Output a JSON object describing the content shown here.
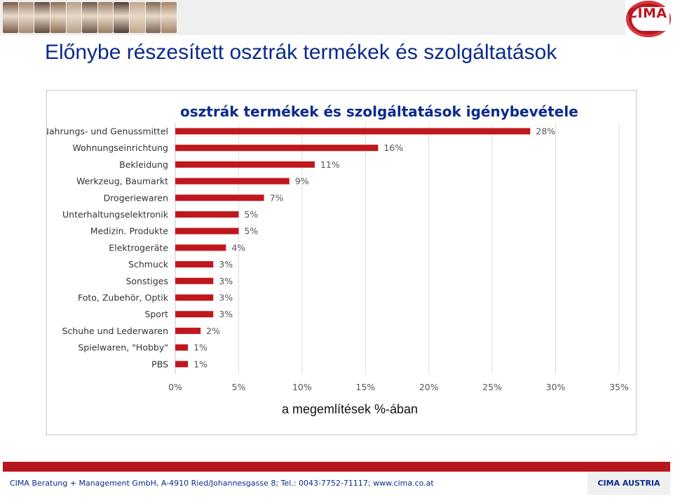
{
  "header": {
    "logo_text": "CIMA",
    "photo_colors": [
      "#7a5a48",
      "#a48a72",
      "#5f4b3e",
      "#8c6d55",
      "#b59f88",
      "#6b5647",
      "#9a7f66",
      "#4e3e34",
      "#c0a58b",
      "#7d6756",
      "#a3846a"
    ]
  },
  "page": {
    "title": "Előnybe részesített osztrák termékek és szolgáltatások"
  },
  "chart_data": {
    "type": "bar",
    "orientation": "horizontal",
    "title": "osztrák termékek és szolgáltatások igénybevétele",
    "xlabel": "a megemlítések %-ában",
    "ylabel": "",
    "xlim": [
      0,
      35
    ],
    "x_ticks": [
      "0%",
      "5%",
      "10%",
      "15%",
      "20%",
      "25%",
      "30%",
      "35%"
    ],
    "x_tick_values": [
      0,
      5,
      10,
      15,
      20,
      25,
      30,
      35
    ],
    "grid": true,
    "bar_color": "#c0171d",
    "categories": [
      "Nahrungs- und Genussmittel",
      "Wohnungseinrichtung",
      "Bekleidung",
      "Werkzeug, Baumarkt",
      "Drogeriewaren",
      "Unterhaltungselektronik",
      "Medizin. Produkte",
      "Elektrogeräte",
      "Schmuck",
      "Sonstiges",
      "Foto, Zubehör, Optik",
      "Sport",
      "Schuhe und Lederwaren",
      "Spielwaren, \"Hobby\"",
      "PBS"
    ],
    "values": [
      28,
      16,
      11,
      9,
      7,
      5,
      5,
      4,
      3,
      3,
      3,
      3,
      2,
      1,
      1
    ],
    "value_labels": [
      "28%",
      "16%",
      "11%",
      "9%",
      "7%",
      "5%",
      "5%",
      "4%",
      "3%",
      "3%",
      "3%",
      "3%",
      "2%",
      "1%",
      "1%"
    ]
  },
  "footer": {
    "contact": "CIMA Beratung + Management GmbH, A-4910 Ried/Johannesgasse 8; Tel.: 0043-7752-71117; www.cima.co.at",
    "brand": "CIMA AUSTRIA"
  }
}
